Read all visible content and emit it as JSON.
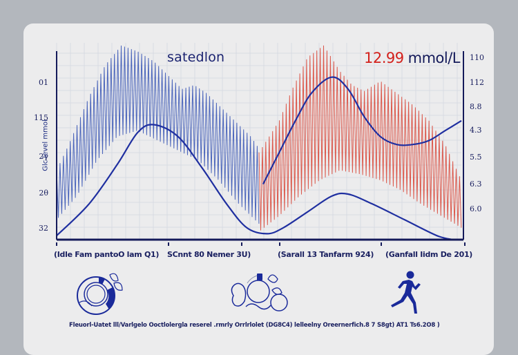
{
  "chart_data": {
    "type": "line",
    "title": "satedlon",
    "reading": {
      "value": "12.99",
      "unit": "mmol/L"
    },
    "ylabel": "Glc level mmol",
    "left_axis_ticks": [
      "01",
      "115",
      "2γ",
      "2θ",
      "32"
    ],
    "right_axis_ticks": [
      "110",
      "112",
      "8.8",
      "4.3",
      "5.5",
      "6.3",
      "6.0"
    ],
    "x_tick_labels": [
      "(Idle Fam pantoO lam Q1)",
      "SCnnt 80 Nemer 3U)",
      "(Sarall 13 Tanfarm 924)",
      "(Ganfall Iidm De 201)"
    ],
    "x_range": [
      0,
      100
    ],
    "y_range": [
      0,
      100
    ],
    "grid": true,
    "series": [
      {
        "name": "oscillation-blue",
        "color": "#3a57b5",
        "x_range": [
          0,
          50
        ],
        "envelope_upper": [
          [
            0,
            35
          ],
          [
            3,
            48
          ],
          [
            8,
            72
          ],
          [
            12,
            88
          ],
          [
            16,
            98
          ],
          [
            20,
            95
          ],
          [
            24,
            90
          ],
          [
            28,
            82
          ],
          [
            31,
            76
          ],
          [
            34,
            78
          ],
          [
            37,
            74
          ],
          [
            40,
            68
          ],
          [
            44,
            60
          ],
          [
            48,
            52
          ],
          [
            50,
            46
          ]
        ],
        "envelope_lower": [
          [
            0,
            10
          ],
          [
            5,
            22
          ],
          [
            10,
            40
          ],
          [
            15,
            52
          ],
          [
            20,
            55
          ],
          [
            25,
            50
          ],
          [
            30,
            45
          ],
          [
            35,
            40
          ],
          [
            40,
            30
          ],
          [
            45,
            18
          ],
          [
            50,
            8
          ]
        ]
      },
      {
        "name": "oscillation-red",
        "color": "#d9483a",
        "x_range": [
          50,
          100
        ],
        "envelope_upper": [
          [
            50,
            44
          ],
          [
            55,
            60
          ],
          [
            58,
            75
          ],
          [
            62,
            92
          ],
          [
            66,
            98
          ],
          [
            70,
            85
          ],
          [
            73,
            78
          ],
          [
            76,
            75
          ],
          [
            80,
            80
          ],
          [
            84,
            74
          ],
          [
            88,
            68
          ],
          [
            92,
            60
          ],
          [
            96,
            48
          ],
          [
            100,
            30
          ]
        ],
        "envelope_lower": [
          [
            50,
            4
          ],
          [
            55,
            12
          ],
          [
            60,
            22
          ],
          [
            65,
            30
          ],
          [
            70,
            35
          ],
          [
            75,
            33
          ],
          [
            80,
            30
          ],
          [
            85,
            25
          ],
          [
            90,
            18
          ],
          [
            95,
            12
          ],
          [
            100,
            6
          ]
        ]
      },
      {
        "name": "glucose-curve-left",
        "color": "#1f2fa0",
        "points": [
          [
            0,
            2
          ],
          [
            8,
            18
          ],
          [
            15,
            38
          ],
          [
            20,
            54
          ],
          [
            24,
            58
          ],
          [
            30,
            52
          ],
          [
            36,
            36
          ],
          [
            42,
            18
          ],
          [
            47,
            6
          ],
          [
            52,
            3
          ],
          [
            56,
            6
          ],
          [
            62,
            14
          ],
          [
            68,
            22
          ],
          [
            72,
            23
          ],
          [
            78,
            18
          ],
          [
            86,
            10
          ],
          [
            94,
            2
          ],
          [
            98,
            0
          ]
        ]
      },
      {
        "name": "glucose-curve-right",
        "color": "#1f2fa0",
        "points": [
          [
            51,
            28
          ],
          [
            55,
            44
          ],
          [
            59,
            60
          ],
          [
            63,
            74
          ],
          [
            68,
            82
          ],
          [
            72,
            76
          ],
          [
            76,
            62
          ],
          [
            80,
            52
          ],
          [
            84,
            48
          ],
          [
            88,
            48
          ],
          [
            92,
            50
          ],
          [
            96,
            55
          ],
          [
            100,
            60
          ]
        ]
      }
    ]
  },
  "icons": [
    "plate-food-icon",
    "vegetables-icon",
    "running-person-icon"
  ],
  "caption": "Fleuorl-Uatet lll/Varlgelo Ooctlolergla reserel .rmrly Orrlrlolet (DG8C4) lelleelny Oreernerfich.8 7 S8gt) AT1 Ts6.2O8 )"
}
